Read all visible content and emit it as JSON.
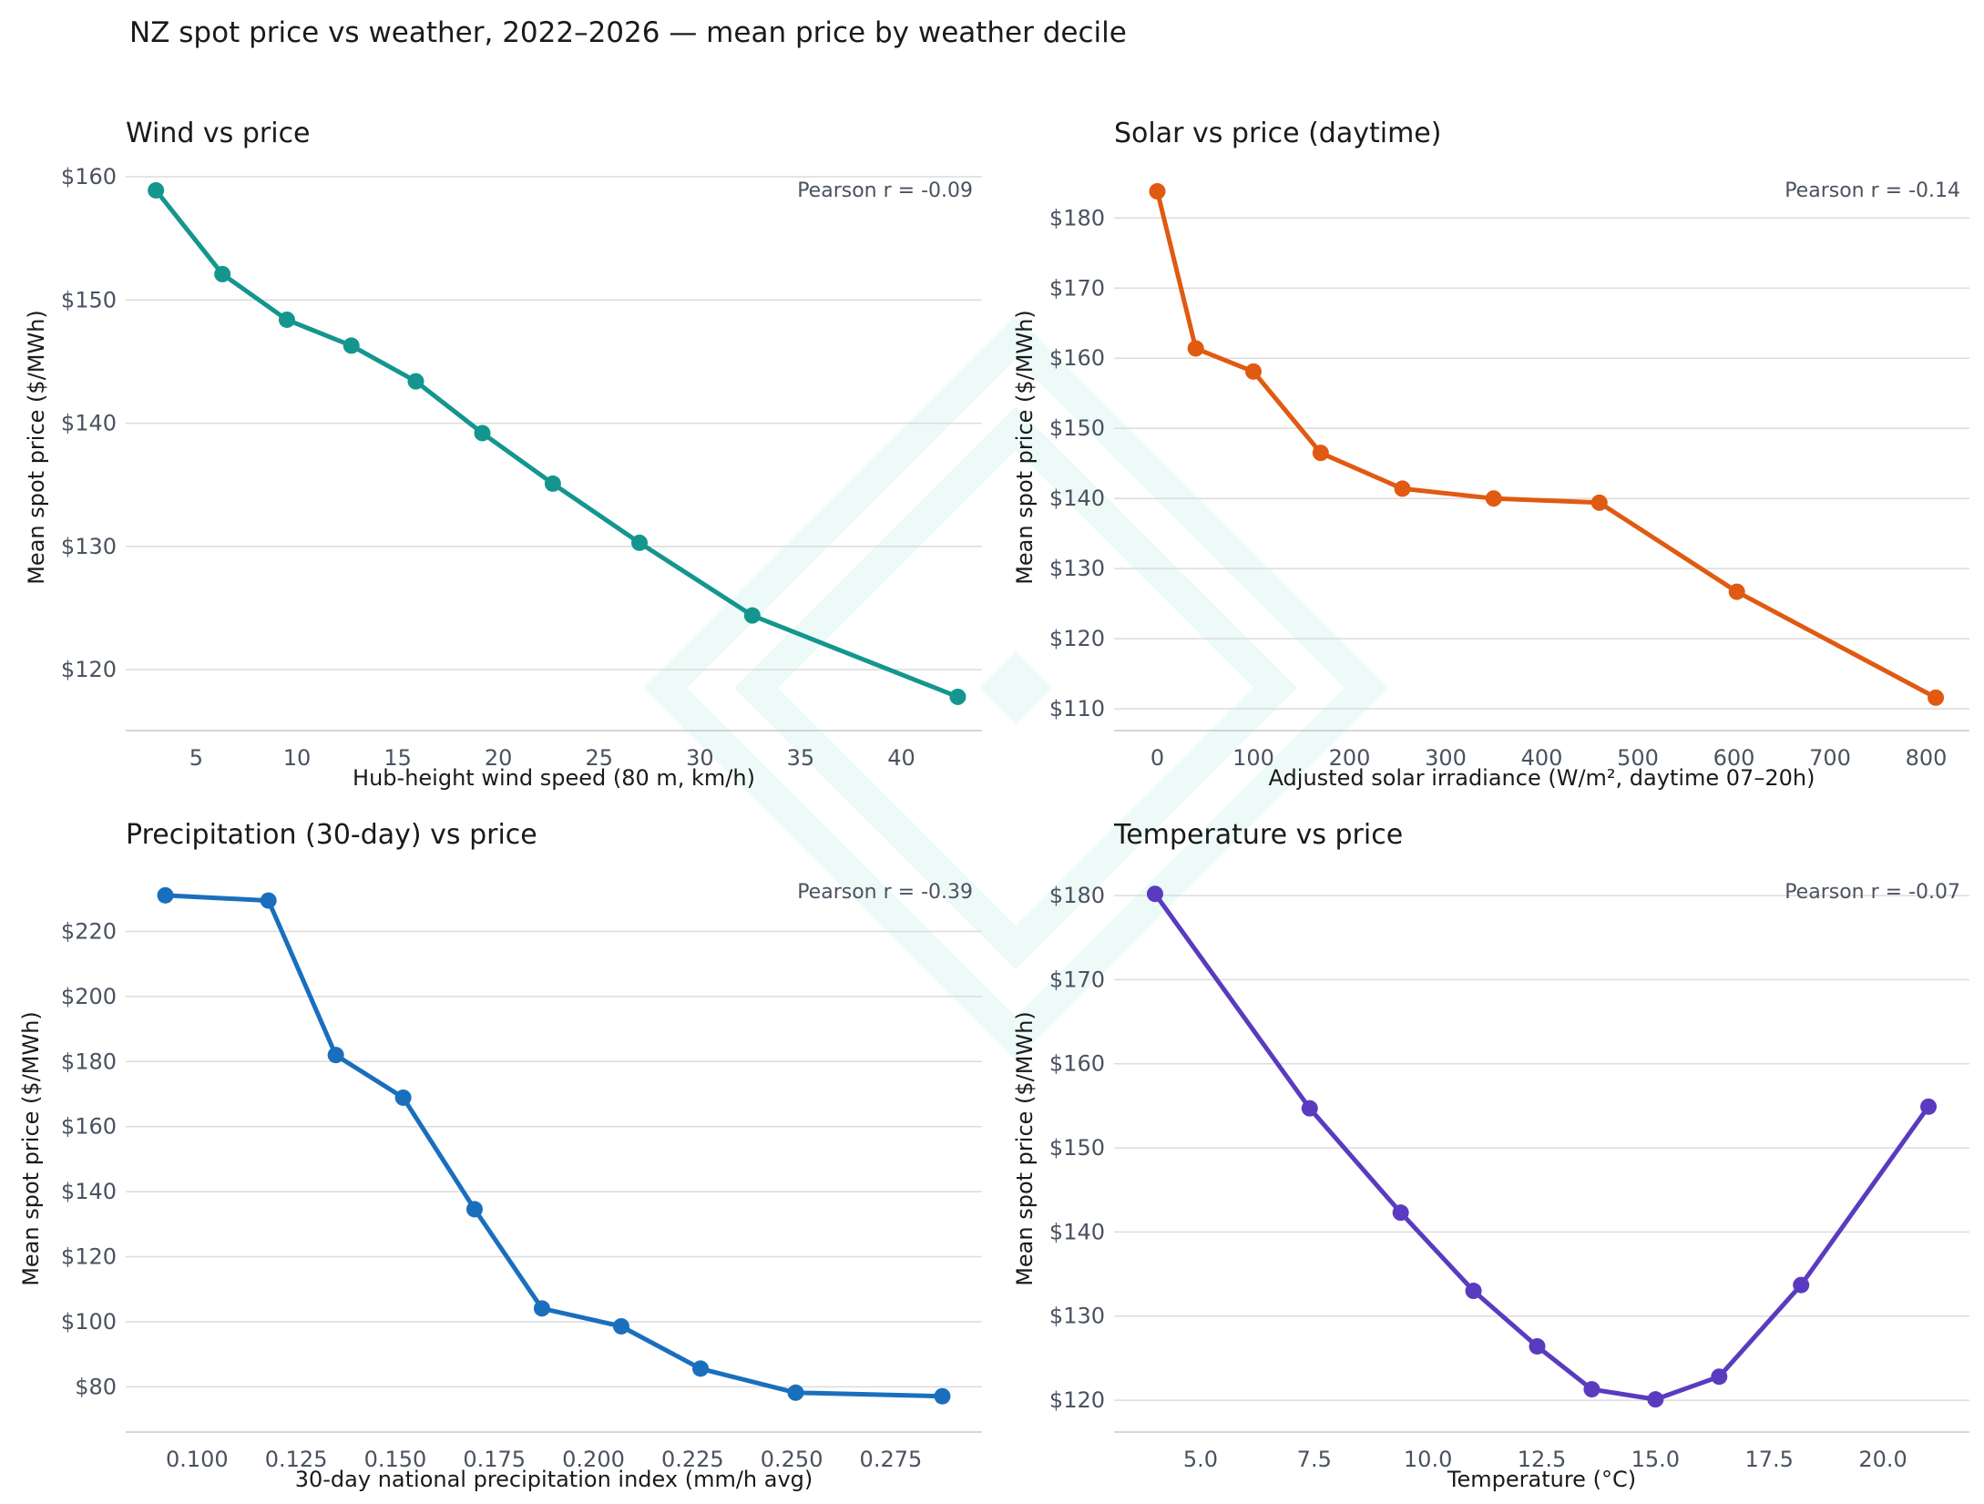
{
  "suptitle": "NZ spot price vs weather, 2022–2026 — mean price by weather decile",
  "chart_data": [
    {
      "type": "line",
      "title": "Wind vs price",
      "xlabel": "Hub-height wind speed (80 m, km/h)",
      "ylabel": "Mean spot price ($/MWh)",
      "annotation": "Pearson r = -0.09",
      "color": "#14968f",
      "xlim": [
        1.5,
        44
      ],
      "ylim": [
        115.8,
        160.3
      ],
      "xticks": [
        5,
        10,
        15,
        20,
        25,
        30,
        35,
        40
      ],
      "xticklabels": [
        "5",
        "10",
        "15",
        "20",
        "25",
        "30",
        "35",
        "40"
      ],
      "yticks": [
        120,
        130,
        140,
        150,
        160
      ],
      "yticklabels": [
        "$120",
        "$130",
        "$140",
        "$150",
        "$160"
      ],
      "x": [
        3.0,
        6.3,
        9.5,
        12.7,
        15.9,
        19.2,
        22.7,
        27.0,
        32.6,
        42.8
      ],
      "y": [
        158.9,
        152.1,
        148.4,
        146.3,
        143.4,
        139.2,
        135.1,
        130.3,
        124.4,
        117.8
      ]
    },
    {
      "type": "line",
      "title": "Solar vs price (daytime)",
      "xlabel": "Adjusted solar irradiance (W/m², daytime 07–20h)",
      "ylabel": "Mean spot price ($/MWh)",
      "annotation": "Pearson r = -0.14",
      "color": "#e05a12",
      "xlim": [
        -45,
        845
      ],
      "ylim": [
        108.2,
        186.4
      ],
      "xticks": [
        0,
        100,
        200,
        300,
        400,
        500,
        600,
        700,
        800
      ],
      "xticklabels": [
        "0",
        "100",
        "200",
        "300",
        "400",
        "500",
        "600",
        "700",
        "800"
      ],
      "yticks": [
        110,
        120,
        130,
        140,
        150,
        160,
        170,
        180
      ],
      "yticklabels": [
        "$110",
        "$120",
        "$130",
        "$140",
        "$150",
        "$160",
        "$170",
        "$180"
      ],
      "x": [
        0,
        40,
        100,
        170,
        255,
        350,
        460,
        603,
        810
      ],
      "y": [
        183.8,
        161.4,
        158.1,
        146.5,
        141.4,
        140.0,
        139.4,
        126.7,
        111.6
      ]
    },
    {
      "type": "line",
      "title": "Precipitation (30-day) vs price",
      "xlabel": "30-day national precipitation index (mm/h avg)",
      "ylabel": "Mean spot price ($/MWh)",
      "annotation": "Pearson r = -0.39",
      "color": "#1a6fbd",
      "xlim": [
        0.082,
        0.298
      ],
      "ylim": [
        68.9,
        237.5
      ],
      "xticks": [
        0.1,
        0.125,
        0.15,
        0.175,
        0.2,
        0.225,
        0.25,
        0.275
      ],
      "xticklabels": [
        "0.100",
        "0.125",
        "0.150",
        "0.175",
        "0.200",
        "0.225",
        "0.250",
        "0.275"
      ],
      "yticks": [
        80,
        100,
        120,
        140,
        160,
        180,
        200,
        220
      ],
      "yticklabels": [
        "$80",
        "$100",
        "$120",
        "$140",
        "$160",
        "$180",
        "$200",
        "$220"
      ],
      "x": [
        0.092,
        0.118,
        0.135,
        0.152,
        0.17,
        0.187,
        0.207,
        0.227,
        0.251,
        0.288
      ],
      "y": [
        231.1,
        229.5,
        182.0,
        168.9,
        134.6,
        104.1,
        98.6,
        85.6,
        78.2,
        77.1
      ]
    },
    {
      "type": "line",
      "title": "Temperature vs price",
      "xlabel": "Temperature (°C)",
      "ylabel": "Mean spot price ($/MWh)",
      "annotation": "Pearson r = -0.07",
      "color": "#5a3bbf",
      "xlim": [
        3.1,
        21.9
      ],
      "ylim": [
        117.3,
        182.5
      ],
      "xticks": [
        5,
        7.5,
        10,
        12.5,
        15,
        17.5,
        20
      ],
      "xticklabels": [
        "5.0",
        "7.5",
        "10.0",
        "12.5",
        "15.0",
        "17.5",
        "20.0"
      ],
      "yticks": [
        120,
        130,
        140,
        150,
        160,
        170,
        180
      ],
      "yticklabels": [
        "$120",
        "$130",
        "$140",
        "$150",
        "$160",
        "$170",
        "$180"
      ],
      "x": [
        4.0,
        7.4,
        9.4,
        11.0,
        12.4,
        13.6,
        15.0,
        16.4,
        18.2,
        21.0
      ],
      "y": [
        180.2,
        154.7,
        142.3,
        133.0,
        126.4,
        121.3,
        120.1,
        122.8,
        133.7,
        154.9
      ]
    }
  ]
}
